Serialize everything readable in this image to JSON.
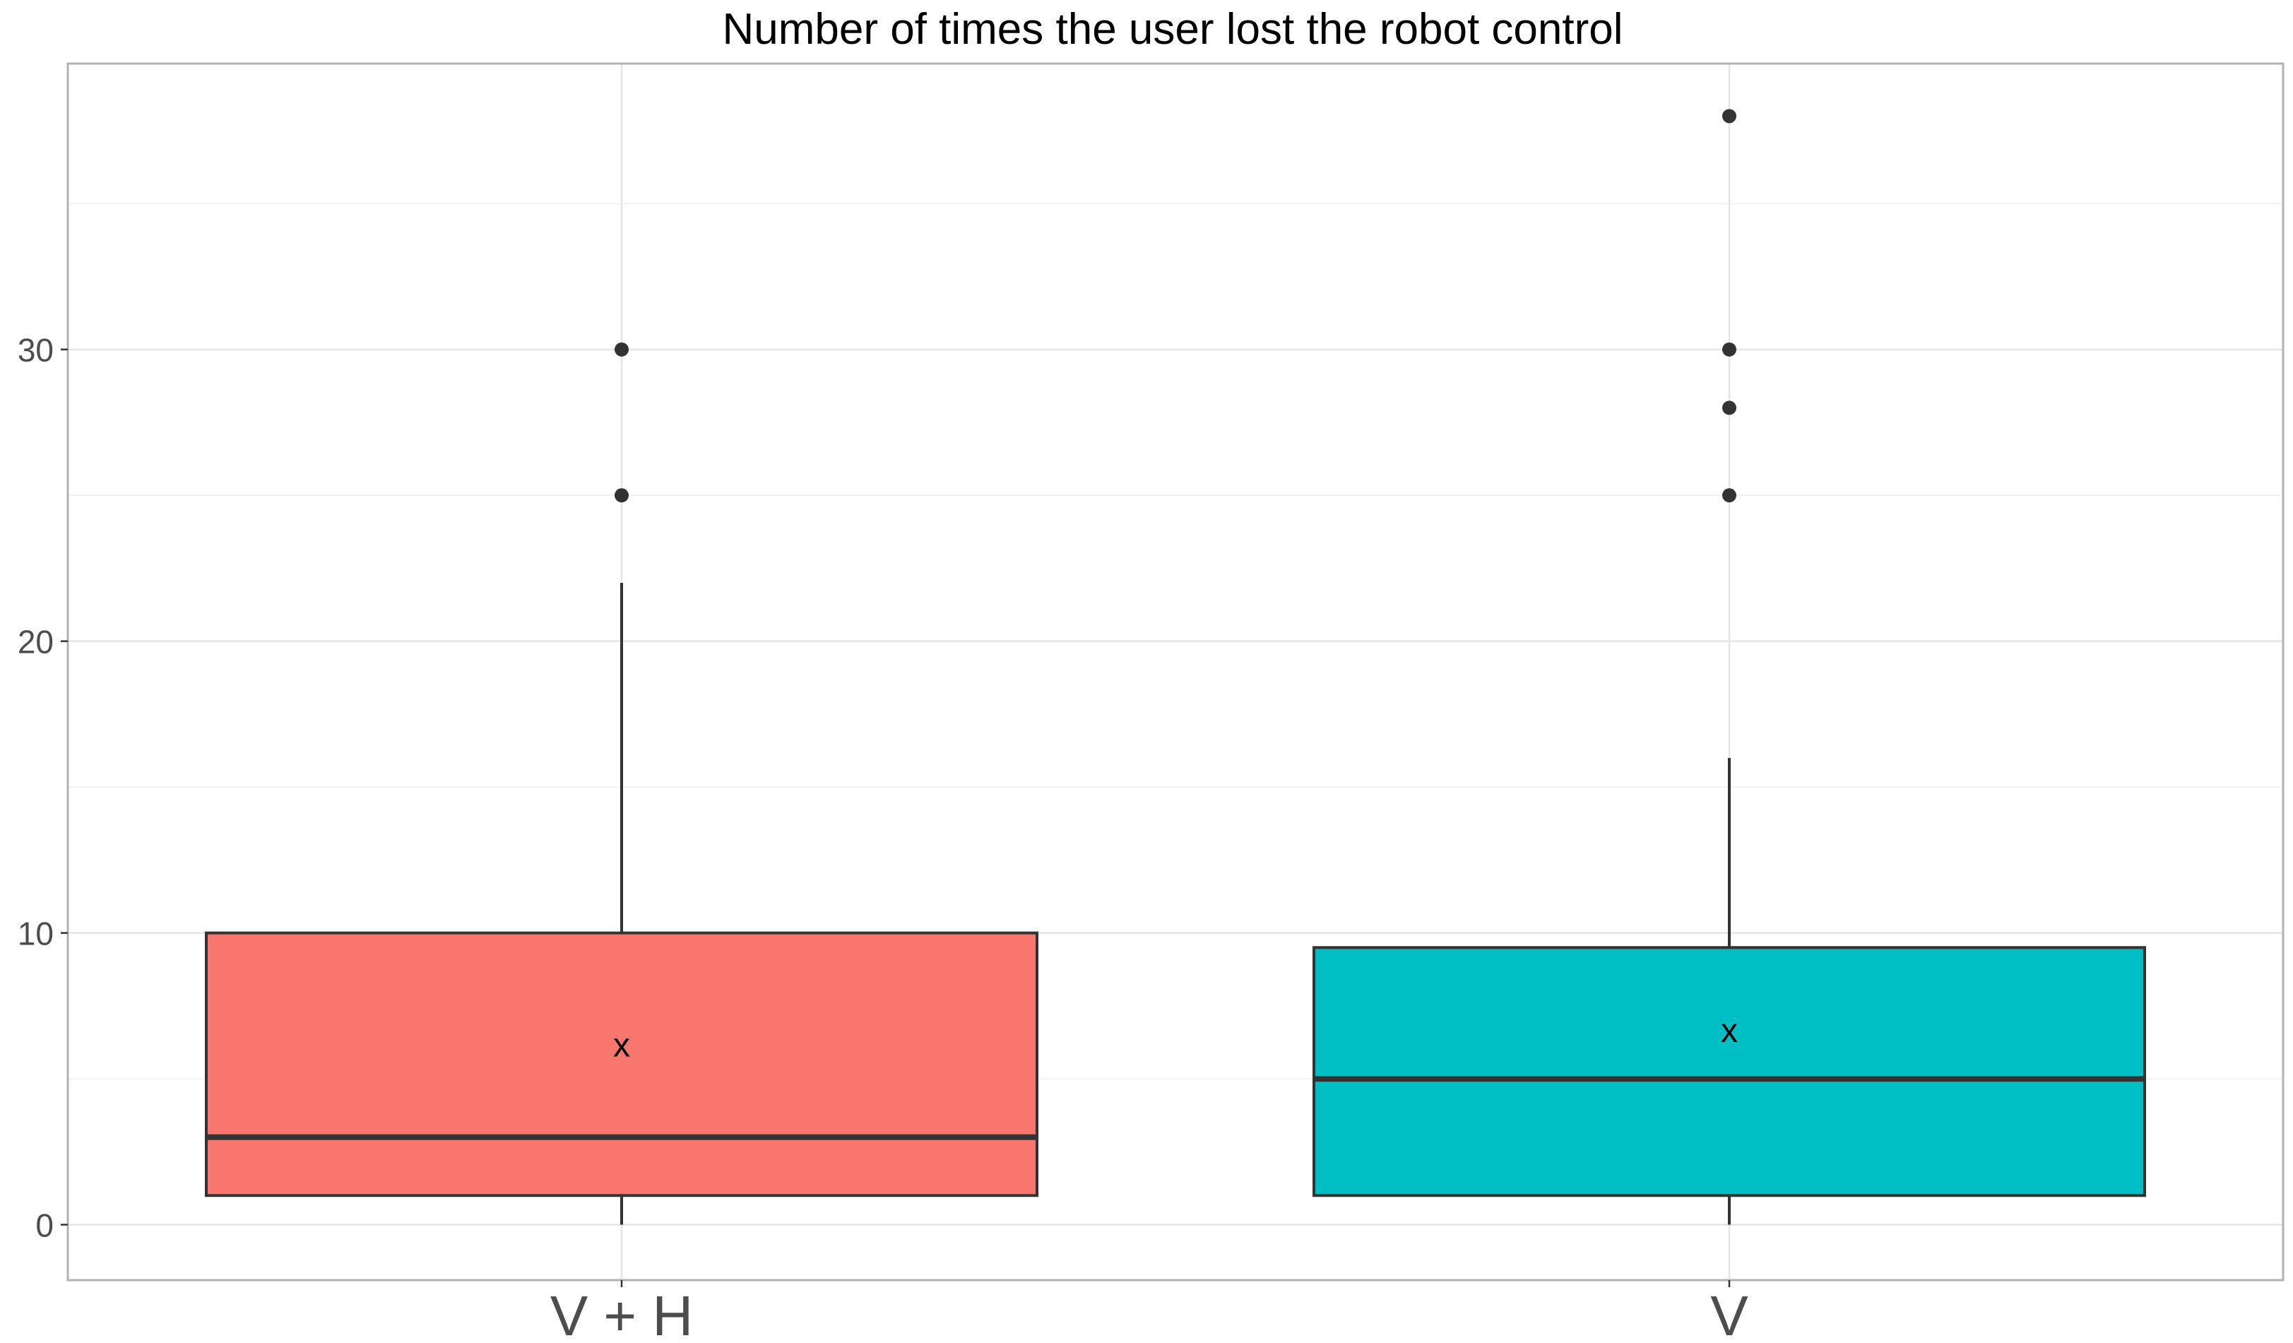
{
  "chart_data": {
    "type": "boxplot",
    "title": "Number of times the user lost the robot control",
    "xlabel": "",
    "ylabel": "",
    "ylim": [
      -1.9,
      39.8
    ],
    "yticks": [
      0,
      10,
      20,
      30
    ],
    "grid": true,
    "legend": "none",
    "categories": [
      "V + H",
      "V"
    ],
    "boxes": [
      {
        "category": "V + H",
        "color": "#F8766D",
        "whisker_low": 0,
        "q1": 1,
        "median": 3,
        "q3": 10,
        "whisker_high": 22,
        "mean": 6.1,
        "mean_marker": "x",
        "outliers": [
          25,
          30
        ]
      },
      {
        "category": "V",
        "color": "#00BFC4",
        "whisker_low": 0,
        "q1": 1,
        "median": 5,
        "q3": 9.5,
        "whisker_high": 16,
        "mean": 6.6,
        "mean_marker": "x",
        "outliers": [
          25,
          28,
          30,
          38
        ]
      }
    ]
  },
  "colors": {
    "background": "#ffffff",
    "panel_border": "#b3b3b3",
    "grid_major": "#e5e5e5",
    "grid_minor": "#f2f2f2",
    "outline": "#333333",
    "text": "#4d4d4d"
  }
}
